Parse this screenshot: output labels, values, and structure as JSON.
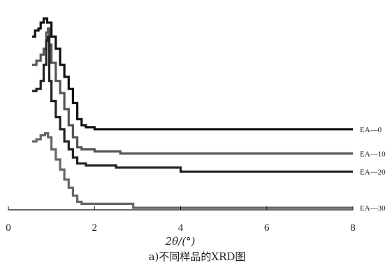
{
  "chart_data": {
    "type": "line",
    "xlabel": "2θ/(°)",
    "caption": "a)不同样品的XRD图",
    "xlim": [
      0,
      8
    ],
    "xticks": [
      "0",
      "2",
      "4",
      "6",
      "8"
    ],
    "yaxis_visible": false,
    "grid": false,
    "legend": "inline-right",
    "series": [
      {
        "name": "EA—0",
        "color": "#111111",
        "points": [
          [
            0.55,
            0.86
          ],
          [
            0.62,
            0.89
          ],
          [
            0.7,
            0.9
          ],
          [
            0.75,
            0.93
          ],
          [
            0.82,
            0.95
          ],
          [
            0.9,
            0.93
          ],
          [
            1.0,
            0.86
          ],
          [
            1.1,
            0.8
          ],
          [
            1.2,
            0.72
          ],
          [
            1.3,
            0.66
          ],
          [
            1.4,
            0.6
          ],
          [
            1.5,
            0.53
          ],
          [
            1.6,
            0.45
          ],
          [
            1.7,
            0.42
          ],
          [
            1.8,
            0.41
          ],
          [
            2.0,
            0.4
          ],
          [
            3.0,
            0.4
          ],
          [
            5.0,
            0.4
          ],
          [
            8.0,
            0.4
          ]
        ]
      },
      {
        "name": "EA—10",
        "color": "#555555",
        "points": [
          [
            0.55,
            0.72
          ],
          [
            0.65,
            0.74
          ],
          [
            0.75,
            0.77
          ],
          [
            0.82,
            0.8
          ],
          [
            0.88,
            0.88
          ],
          [
            0.92,
            0.9
          ],
          [
            0.95,
            0.82
          ],
          [
            1.0,
            0.73
          ],
          [
            1.1,
            0.64
          ],
          [
            1.2,
            0.58
          ],
          [
            1.3,
            0.5
          ],
          [
            1.4,
            0.42
          ],
          [
            1.5,
            0.36
          ],
          [
            1.6,
            0.31
          ],
          [
            1.7,
            0.3
          ],
          [
            2.0,
            0.29
          ],
          [
            2.6,
            0.28
          ],
          [
            4.0,
            0.28
          ],
          [
            8.0,
            0.28
          ]
        ]
      },
      {
        "name": "EA—20",
        "color": "#222222",
        "points": [
          [
            0.55,
            0.59
          ],
          [
            0.65,
            0.6
          ],
          [
            0.75,
            0.64
          ],
          [
            0.82,
            0.72
          ],
          [
            0.88,
            0.84
          ],
          [
            0.92,
            0.86
          ],
          [
            0.95,
            0.64
          ],
          [
            1.0,
            0.54
          ],
          [
            1.1,
            0.46
          ],
          [
            1.2,
            0.4
          ],
          [
            1.3,
            0.34
          ],
          [
            1.4,
            0.3
          ],
          [
            1.5,
            0.26
          ],
          [
            1.6,
            0.23
          ],
          [
            1.8,
            0.22
          ],
          [
            2.5,
            0.21
          ],
          [
            4.0,
            0.19
          ],
          [
            8.0,
            0.19
          ]
        ]
      },
      {
        "name": "EA—30",
        "color": "#666666",
        "points": [
          [
            0.55,
            0.34
          ],
          [
            0.65,
            0.35
          ],
          [
            0.75,
            0.37
          ],
          [
            0.85,
            0.38
          ],
          [
            0.92,
            0.36
          ],
          [
            1.0,
            0.3
          ],
          [
            1.1,
            0.25
          ],
          [
            1.2,
            0.2
          ],
          [
            1.3,
            0.15
          ],
          [
            1.4,
            0.11
          ],
          [
            1.5,
            0.07
          ],
          [
            1.6,
            0.04
          ],
          [
            1.7,
            0.03
          ],
          [
            2.0,
            0.03
          ],
          [
            2.8,
            0.03
          ],
          [
            2.9,
            0.01
          ],
          [
            4.5,
            0.01
          ],
          [
            8.0,
            0.01
          ]
        ]
      }
    ]
  }
}
